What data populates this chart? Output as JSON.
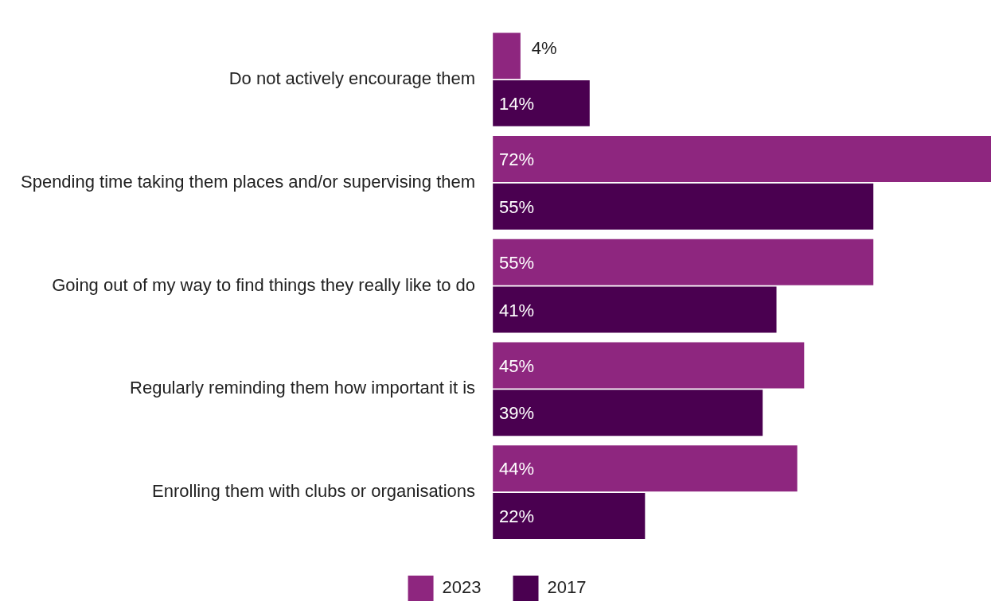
{
  "chart_data": {
    "type": "bar",
    "orientation": "horizontal",
    "categories": [
      "Do not actively encourage them",
      "Spending time taking them places and/or supervising them",
      "Going out of my way to find things they really like to do",
      "Regularly reminding them how important it is",
      "Enrolling them with clubs or organisations"
    ],
    "series": [
      {
        "name": "2023",
        "color": "#8e267f",
        "values": [
          4,
          72,
          55,
          45,
          44
        ],
        "value_labels": [
          "4%",
          "72%",
          "55%",
          "45%",
          "44%"
        ]
      },
      {
        "name": "2017",
        "color": "#4a0050",
        "values": [
          14,
          55,
          41,
          39,
          22
        ],
        "value_labels": [
          "14%",
          "55%",
          "41%",
          "39%",
          "22%"
        ]
      }
    ],
    "legend": "bottom",
    "grid": false,
    "tick_labels": "y"
  }
}
